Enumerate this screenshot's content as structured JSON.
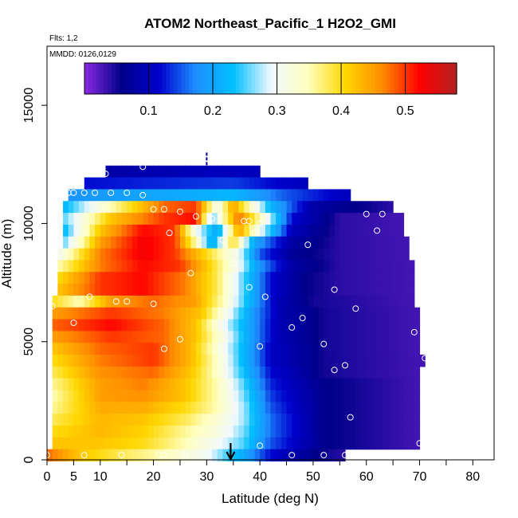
{
  "chart_data": {
    "type": "heatmap",
    "title": "ATOM2 Northeast_Pacific_1 H2O2_GMI",
    "flights_label": "Flts: 1,2",
    "dates_label": "MMDD: 0126,0129",
    "xlabel": "Latitude (deg N)",
    "ylabel": "Altitude (m)",
    "xlim": [
      0,
      84
    ],
    "ylim": [
      0,
      17500
    ],
    "x_ticks": [
      0,
      5,
      10,
      20,
      30,
      40,
      50,
      60,
      70,
      80
    ],
    "y_ticks": [
      0,
      5000,
      10000,
      15000
    ],
    "colorbar": {
      "range": [
        0.0,
        0.58
      ],
      "ticks": [
        0.1,
        0.2,
        0.3,
        0.4,
        0.5
      ],
      "colors": [
        "#8B2BE2",
        "#00008B",
        "#0000CD",
        "#1E90FF",
        "#00BFFF",
        "#F0F8FF",
        "#FFFFC0",
        "#FFD700",
        "#FF8C00",
        "#FF0000",
        "#B22222"
      ]
    },
    "curtain_rows": [
      {
        "alt": 12200,
        "lat_min": 11,
        "lat_max": 40,
        "profile": [
          [
            11,
            0.08
          ],
          [
            20,
            0.09
          ],
          [
            30,
            0.1
          ],
          [
            40,
            0.1
          ]
        ]
      },
      {
        "alt": 11700,
        "lat_min": 7,
        "lat_max": 49,
        "profile": [
          [
            7,
            0.12
          ],
          [
            20,
            0.13
          ],
          [
            35,
            0.14
          ],
          [
            49,
            0.1
          ]
        ]
      },
      {
        "alt": 11200,
        "lat_min": 4,
        "lat_max": 57,
        "profile": [
          [
            4,
            0.18
          ],
          [
            20,
            0.2
          ],
          [
            35,
            0.22
          ],
          [
            45,
            0.15
          ],
          [
            57,
            0.1
          ]
        ]
      },
      {
        "alt": 10700,
        "lat_min": 3,
        "lat_max": 65,
        "profile": [
          [
            3,
            0.22
          ],
          [
            12,
            0.35
          ],
          [
            22,
            0.48
          ],
          [
            28,
            0.5
          ],
          [
            32,
            0.3
          ],
          [
            35,
            0.45
          ],
          [
            42,
            0.22
          ],
          [
            50,
            0.08
          ],
          [
            65,
            0.04
          ]
        ]
      },
      {
        "alt": 10200,
        "lat_min": 3,
        "lat_max": 67,
        "profile": [
          [
            3,
            0.25
          ],
          [
            12,
            0.42
          ],
          [
            22,
            0.5
          ],
          [
            28,
            0.52
          ],
          [
            31,
            0.25
          ],
          [
            36,
            0.48
          ],
          [
            40,
            0.35
          ],
          [
            46,
            0.12
          ],
          [
            55,
            0.04
          ],
          [
            67,
            0.03
          ]
        ]
      },
      {
        "alt": 9700,
        "lat_min": 3,
        "lat_max": 67,
        "profile": [
          [
            3,
            0.22
          ],
          [
            10,
            0.42
          ],
          [
            18,
            0.52
          ],
          [
            24,
            0.5
          ],
          [
            28,
            0.3
          ],
          [
            32,
            0.2
          ],
          [
            36,
            0.45
          ],
          [
            40,
            0.3
          ],
          [
            46,
            0.1
          ],
          [
            55,
            0.04
          ],
          [
            67,
            0.03
          ]
        ]
      },
      {
        "alt": 9200,
        "lat_min": 3,
        "lat_max": 68,
        "profile": [
          [
            3,
            0.25
          ],
          [
            10,
            0.45
          ],
          [
            18,
            0.53
          ],
          [
            24,
            0.5
          ],
          [
            28,
            0.35
          ],
          [
            31,
            0.2
          ],
          [
            35,
            0.4
          ],
          [
            39,
            0.2
          ],
          [
            46,
            0.08
          ],
          [
            55,
            0.04
          ],
          [
            68,
            0.03
          ]
        ]
      },
      {
        "alt": 8700,
        "lat_min": 2,
        "lat_max": 68,
        "profile": [
          [
            2,
            0.3
          ],
          [
            10,
            0.47
          ],
          [
            18,
            0.53
          ],
          [
            24,
            0.5
          ],
          [
            30,
            0.4
          ],
          [
            36,
            0.3
          ],
          [
            40,
            0.15
          ],
          [
            46,
            0.07
          ],
          [
            55,
            0.04
          ],
          [
            68,
            0.03
          ]
        ]
      },
      {
        "alt": 8200,
        "lat_min": 2,
        "lat_max": 69,
        "profile": [
          [
            2,
            0.35
          ],
          [
            10,
            0.47
          ],
          [
            18,
            0.52
          ],
          [
            25,
            0.5
          ],
          [
            30,
            0.42
          ],
          [
            36,
            0.3
          ],
          [
            40,
            0.18
          ],
          [
            46,
            0.08
          ],
          [
            55,
            0.04
          ],
          [
            69,
            0.03
          ]
        ]
      },
      {
        "alt": 7700,
        "lat_min": 2,
        "lat_max": 69,
        "profile": [
          [
            2,
            0.4
          ],
          [
            10,
            0.5
          ],
          [
            18,
            0.52
          ],
          [
            26,
            0.47
          ],
          [
            32,
            0.38
          ],
          [
            37,
            0.25
          ],
          [
            42,
            0.12
          ],
          [
            48,
            0.06
          ],
          [
            55,
            0.04
          ],
          [
            69,
            0.03
          ]
        ]
      },
      {
        "alt": 7200,
        "lat_min": 2,
        "lat_max": 69,
        "profile": [
          [
            2,
            0.42
          ],
          [
            10,
            0.5
          ],
          [
            18,
            0.52
          ],
          [
            26,
            0.47
          ],
          [
            32,
            0.38
          ],
          [
            37,
            0.25
          ],
          [
            42,
            0.12
          ],
          [
            48,
            0.06
          ],
          [
            55,
            0.04
          ],
          [
            69,
            0.03
          ]
        ]
      },
      {
        "alt": 6700,
        "lat_min": 1,
        "lat_max": 69,
        "profile": [
          [
            1,
            0.4
          ],
          [
            6,
            0.35
          ],
          [
            12,
            0.45
          ],
          [
            20,
            0.48
          ],
          [
            28,
            0.45
          ],
          [
            33,
            0.35
          ],
          [
            38,
            0.22
          ],
          [
            43,
            0.1
          ],
          [
            50,
            0.05
          ],
          [
            69,
            0.03
          ]
        ]
      },
      {
        "alt": 6200,
        "lat_min": 1,
        "lat_max": 70,
        "profile": [
          [
            1,
            0.45
          ],
          [
            12,
            0.5
          ],
          [
            22,
            0.47
          ],
          [
            29,
            0.42
          ],
          [
            34,
            0.3
          ],
          [
            39,
            0.18
          ],
          [
            44,
            0.09
          ],
          [
            52,
            0.05
          ],
          [
            70,
            0.03
          ]
        ]
      },
      {
        "alt": 5700,
        "lat_min": 1,
        "lat_max": 70,
        "profile": [
          [
            1,
            0.48
          ],
          [
            12,
            0.52
          ],
          [
            22,
            0.48
          ],
          [
            28,
            0.42
          ],
          [
            33,
            0.3
          ],
          [
            38,
            0.2
          ],
          [
            43,
            0.1
          ],
          [
            52,
            0.05
          ],
          [
            70,
            0.03
          ]
        ]
      },
      {
        "alt": 5200,
        "lat_min": 1,
        "lat_max": 70,
        "profile": [
          [
            1,
            0.45
          ],
          [
            12,
            0.5
          ],
          [
            22,
            0.48
          ],
          [
            28,
            0.42
          ],
          [
            33,
            0.32
          ],
          [
            38,
            0.2
          ],
          [
            43,
            0.1
          ],
          [
            52,
            0.05
          ],
          [
            70,
            0.03
          ]
        ]
      },
      {
        "alt": 4700,
        "lat_min": 1,
        "lat_max": 70,
        "profile": [
          [
            1,
            0.42
          ],
          [
            10,
            0.48
          ],
          [
            20,
            0.5
          ],
          [
            27,
            0.43
          ],
          [
            32,
            0.33
          ],
          [
            37,
            0.22
          ],
          [
            42,
            0.11
          ],
          [
            52,
            0.05
          ],
          [
            70,
            0.03
          ]
        ]
      },
      {
        "alt": 4200,
        "lat_min": 1,
        "lat_max": 71,
        "profile": [
          [
            1,
            0.4
          ],
          [
            10,
            0.47
          ],
          [
            20,
            0.5
          ],
          [
            27,
            0.43
          ],
          [
            32,
            0.34
          ],
          [
            37,
            0.22
          ],
          [
            42,
            0.11
          ],
          [
            52,
            0.05
          ],
          [
            71,
            0.03
          ]
        ]
      },
      {
        "alt": 3700,
        "lat_min": 1,
        "lat_max": 70,
        "profile": [
          [
            1,
            0.38
          ],
          [
            10,
            0.46
          ],
          [
            20,
            0.48
          ],
          [
            27,
            0.42
          ],
          [
            32,
            0.34
          ],
          [
            37,
            0.23
          ],
          [
            42,
            0.12
          ],
          [
            52,
            0.05
          ],
          [
            70,
            0.03
          ]
        ]
      },
      {
        "alt": 3200,
        "lat_min": 1,
        "lat_max": 70,
        "profile": [
          [
            1,
            0.36
          ],
          [
            10,
            0.45
          ],
          [
            18,
            0.47
          ],
          [
            26,
            0.42
          ],
          [
            32,
            0.35
          ],
          [
            37,
            0.25
          ],
          [
            42,
            0.13
          ],
          [
            52,
            0.06
          ],
          [
            70,
            0.03
          ]
        ]
      },
      {
        "alt": 2700,
        "lat_min": 1,
        "lat_max": 70,
        "profile": [
          [
            1,
            0.35
          ],
          [
            10,
            0.45
          ],
          [
            18,
            0.46
          ],
          [
            26,
            0.42
          ],
          [
            32,
            0.35
          ],
          [
            37,
            0.26
          ],
          [
            42,
            0.14
          ],
          [
            52,
            0.06
          ],
          [
            70,
            0.03
          ]
        ]
      },
      {
        "alt": 2200,
        "lat_min": 1,
        "lat_max": 70,
        "profile": [
          [
            1,
            0.36
          ],
          [
            10,
            0.44
          ],
          [
            18,
            0.44
          ],
          [
            26,
            0.4
          ],
          [
            32,
            0.35
          ],
          [
            37,
            0.27
          ],
          [
            42,
            0.15
          ],
          [
            52,
            0.06
          ],
          [
            70,
            0.03
          ]
        ]
      },
      {
        "alt": 1700,
        "lat_min": 1,
        "lat_max": 70,
        "profile": [
          [
            1,
            0.38
          ],
          [
            10,
            0.43
          ],
          [
            18,
            0.42
          ],
          [
            26,
            0.38
          ],
          [
            32,
            0.33
          ],
          [
            37,
            0.27
          ],
          [
            42,
            0.16
          ],
          [
            52,
            0.06
          ],
          [
            70,
            0.03
          ]
        ]
      },
      {
        "alt": 1200,
        "lat_min": 1,
        "lat_max": 70,
        "profile": [
          [
            1,
            0.4
          ],
          [
            10,
            0.43
          ],
          [
            18,
            0.41
          ],
          [
            26,
            0.36
          ],
          [
            32,
            0.32
          ],
          [
            37,
            0.26
          ],
          [
            42,
            0.16
          ],
          [
            52,
            0.06
          ],
          [
            70,
            0.03
          ]
        ]
      },
      {
        "alt": 700,
        "lat_min": 1,
        "lat_max": 70,
        "profile": [
          [
            1,
            0.42
          ],
          [
            10,
            0.42
          ],
          [
            18,
            0.4
          ],
          [
            26,
            0.35
          ],
          [
            32,
            0.3
          ],
          [
            37,
            0.25
          ],
          [
            42,
            0.15
          ],
          [
            52,
            0.06
          ],
          [
            70,
            0.03
          ]
        ]
      },
      {
        "alt": 200,
        "lat_min": 0,
        "lat_max": 56,
        "profile": [
          [
            0,
            0.48
          ],
          [
            6,
            0.42
          ],
          [
            14,
            0.38
          ],
          [
            22,
            0.35
          ],
          [
            30,
            0.3
          ],
          [
            36,
            0.22
          ],
          [
            42,
            0.12
          ],
          [
            50,
            0.06
          ],
          [
            56,
            0.04
          ]
        ]
      }
    ],
    "observations": [
      [
        11,
        12100
      ],
      [
        18,
        12400
      ],
      [
        4,
        11300
      ],
      [
        5,
        11300
      ],
      [
        7,
        11300
      ],
      [
        9,
        11300
      ],
      [
        12,
        11300
      ],
      [
        15,
        11300
      ],
      [
        18,
        11200
      ],
      [
        20,
        10600
      ],
      [
        22,
        10600
      ],
      [
        25,
        10500
      ],
      [
        28,
        10300
      ],
      [
        31,
        10200
      ],
      [
        37,
        10100
      ],
      [
        38,
        10100
      ],
      [
        40,
        10000
      ],
      [
        60,
        10400
      ],
      [
        63,
        10400
      ],
      [
        66,
        11000
      ],
      [
        23,
        9600
      ],
      [
        39,
        9600
      ],
      [
        33,
        9300
      ],
      [
        49,
        9100
      ],
      [
        62,
        9700
      ],
      [
        35,
        8300
      ],
      [
        27,
        7900
      ],
      [
        38,
        7300
      ],
      [
        54,
        7200
      ],
      [
        8,
        6900
      ],
      [
        13,
        6700
      ],
      [
        15,
        6700
      ],
      [
        20,
        6600
      ],
      [
        41,
        6900
      ],
      [
        1,
        6500
      ],
      [
        58,
        6400
      ],
      [
        5,
        5800
      ],
      [
        48,
        6000
      ],
      [
        46,
        5600
      ],
      [
        69,
        5400
      ],
      [
        25,
        5100
      ],
      [
        22,
        4700
      ],
      [
        40,
        4800
      ],
      [
        52,
        4900
      ],
      [
        71,
        4300
      ],
      [
        54,
        3800
      ],
      [
        56,
        4000
      ],
      [
        57,
        1800
      ],
      [
        40,
        600
      ],
      [
        70,
        700
      ],
      [
        0,
        200
      ],
      [
        7,
        200
      ],
      [
        14,
        200
      ],
      [
        21,
        200
      ],
      [
        22,
        200
      ],
      [
        26,
        200
      ],
      [
        46,
        200
      ],
      [
        52,
        200
      ],
      [
        56,
        200
      ]
    ],
    "marker_dashes": [
      [
        30,
        12900
      ],
      [
        30,
        12700
      ],
      [
        30,
        12500
      ],
      [
        30,
        12300
      ]
    ],
    "arrow_lat": 34.5
  }
}
